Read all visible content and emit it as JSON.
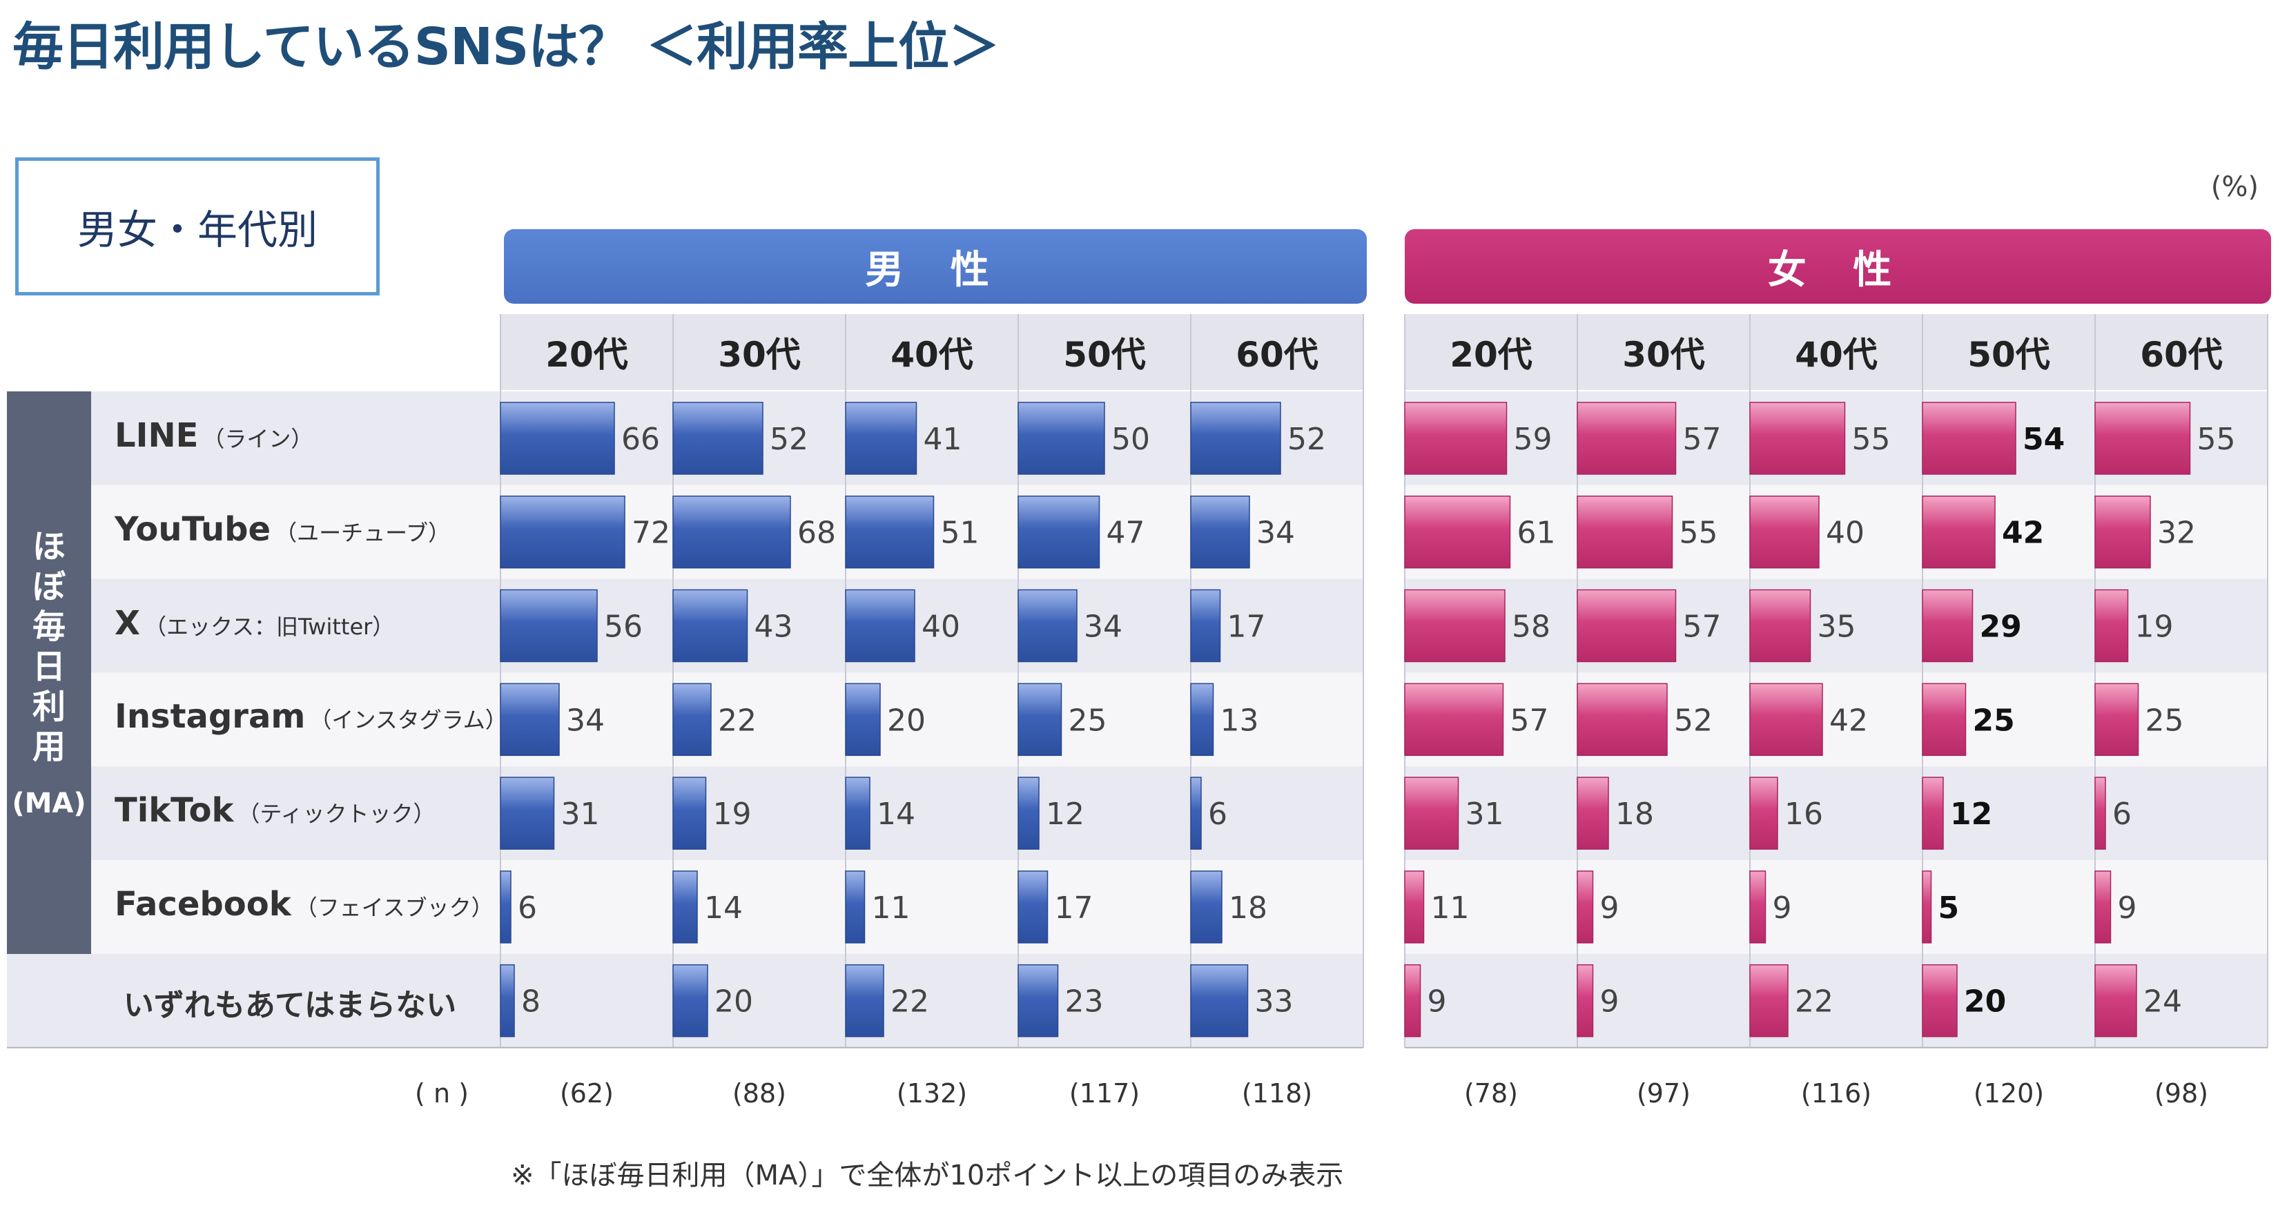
{
  "title": "毎日利用しているSNSは？ ＜利用率上位＞",
  "segment_label": "男女・年代別",
  "unit": "(%)",
  "side_label": {
    "vertical": "ほぼ毎日利用",
    "ma": "(MA)"
  },
  "n_label": "( n )",
  "note": "※「ほぼ毎日利用（MA）」で全体が10ポイント以上の項目のみ表示",
  "groups": [
    {
      "name": "男 性",
      "color": "#3a5fb0"
    },
    {
      "name": "女 性",
      "color": "#c0307a"
    }
  ],
  "age_headers": [
    "20代",
    "30代",
    "40代",
    "50代",
    "60代"
  ],
  "rows": [
    {
      "name": "LINE",
      "sub": "（ライン）"
    },
    {
      "name": "YouTube",
      "sub": "（ユーチューブ）"
    },
    {
      "name": "X",
      "sub": "（エックス：旧Twitter）"
    },
    {
      "name": "Instagram",
      "sub": "（インスタグラム）"
    },
    {
      "name": "TikTok",
      "sub": "（ティックトック）"
    },
    {
      "name": "Facebook",
      "sub": "（フェイスブック）"
    }
  ],
  "none_row": "いずれもあてはまらない",
  "n_values": {
    "male": [
      "(62)",
      "(88)",
      "(132)",
      "(117)",
      "(118)"
    ],
    "female": [
      "(78)",
      "(97)",
      "(116)",
      "(120)",
      "(98)"
    ]
  },
  "chart_data": {
    "type": "bar",
    "title": "毎日利用しているSNSは？ ＜利用率上位＞",
    "categories": [
      "LINE",
      "YouTube",
      "X",
      "Instagram",
      "TikTok",
      "Facebook",
      "いずれもあてはまらない"
    ],
    "ylabel": "(%)",
    "ylim": [
      0,
      100
    ],
    "series": [
      {
        "name": "男性 20代",
        "values": [
          66,
          72,
          56,
          34,
          31,
          6,
          8
        ]
      },
      {
        "name": "男性 30代",
        "values": [
          52,
          68,
          43,
          22,
          19,
          14,
          20
        ]
      },
      {
        "name": "男性 40代",
        "values": [
          41,
          51,
          40,
          20,
          14,
          11,
          22
        ]
      },
      {
        "name": "男性 50代",
        "values": [
          50,
          47,
          34,
          25,
          12,
          17,
          23
        ]
      },
      {
        "name": "男性 60代",
        "values": [
          52,
          34,
          17,
          13,
          6,
          18,
          33
        ]
      },
      {
        "name": "女性 20代",
        "values": [
          59,
          61,
          58,
          57,
          31,
          11,
          9
        ]
      },
      {
        "name": "女性 30代",
        "values": [
          57,
          55,
          57,
          52,
          18,
          9,
          9
        ]
      },
      {
        "name": "女性 40代",
        "values": [
          55,
          40,
          35,
          42,
          16,
          9,
          22
        ]
      },
      {
        "name": "女性 50代",
        "values": [
          54,
          42,
          29,
          25,
          12,
          5,
          20
        ]
      },
      {
        "name": "女性 60代",
        "values": [
          55,
          32,
          19,
          25,
          6,
          9,
          24
        ]
      }
    ]
  }
}
